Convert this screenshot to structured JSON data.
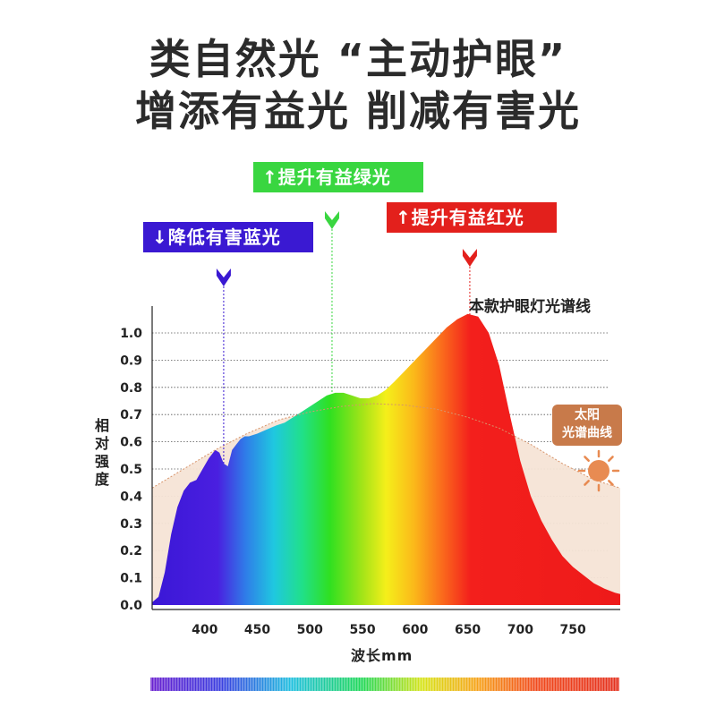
{
  "headline": {
    "line1": "类自然光 “主动护眼”",
    "line2": "增添有益光 削减有害光"
  },
  "tags": {
    "green": "↑提升有益绿光",
    "red": "↑提升有益红光",
    "blue": "↓降低有害蓝光"
  },
  "colors": {
    "green_tag": "#39d640",
    "red_tag": "#e3201c",
    "blue_tag": "#3a19d2",
    "sun_fill": "#f6e4d6",
    "sun_line": "#d7946b",
    "headline": "#2b2b2b"
  },
  "curve_label": "本款护眼灯光谱线",
  "sun_label": {
    "line1": "太阳",
    "line2": "光谱曲线"
  },
  "icons": {
    "sun": "sun-icon",
    "arrow_down": "arrow-down-icon"
  },
  "chart_data": {
    "type": "area",
    "ylabel": "相对强度",
    "xlabel": "波长mm",
    "xlim": [
      350,
      795
    ],
    "ylim": [
      0,
      1.0
    ],
    "xticks": [
      "400",
      "450",
      "500",
      "550",
      "600",
      "650",
      "700",
      "750"
    ],
    "yticks": [
      "0.0",
      "0.1",
      "0.2",
      "0.3",
      "0.4",
      "0.5",
      "0.6",
      "0.7",
      "0.8",
      "0.9",
      "1.0"
    ],
    "grid": true,
    "series": [
      {
        "name": "本款护眼灯光谱线",
        "x": [
          350,
          356,
          362,
          368,
          374,
          380,
          386,
          392,
          398,
          404,
          410,
          414,
          418,
          422,
          426,
          430,
          434,
          438,
          442,
          446,
          450,
          456,
          462,
          468,
          476,
          484,
          492,
          500,
          508,
          516,
          524,
          532,
          540,
          548,
          556,
          564,
          572,
          580,
          590,
          600,
          610,
          620,
          630,
          640,
          650,
          660,
          670,
          680,
          690,
          700,
          710,
          720,
          730,
          740,
          750,
          760,
          770,
          780,
          790,
          795
        ],
        "y": [
          0.01,
          0.03,
          0.12,
          0.26,
          0.36,
          0.42,
          0.45,
          0.46,
          0.5,
          0.54,
          0.57,
          0.56,
          0.52,
          0.51,
          0.57,
          0.59,
          0.61,
          0.62,
          0.62,
          0.625,
          0.63,
          0.64,
          0.65,
          0.66,
          0.67,
          0.69,
          0.71,
          0.73,
          0.75,
          0.77,
          0.78,
          0.78,
          0.77,
          0.76,
          0.76,
          0.77,
          0.79,
          0.82,
          0.86,
          0.9,
          0.94,
          0.98,
          1.02,
          1.05,
          1.07,
          1.06,
          1.0,
          0.88,
          0.7,
          0.53,
          0.4,
          0.31,
          0.24,
          0.18,
          0.14,
          0.11,
          0.08,
          0.06,
          0.045,
          0.04
        ]
      },
      {
        "name": "太阳光谱曲线",
        "x": [
          350,
          380,
          410,
          440,
          470,
          500,
          530,
          560,
          590,
          620,
          650,
          680,
          710,
          740,
          770,
          795
        ],
        "y": [
          0.43,
          0.5,
          0.57,
          0.63,
          0.68,
          0.71,
          0.73,
          0.74,
          0.735,
          0.72,
          0.69,
          0.65,
          0.59,
          0.52,
          0.46,
          0.43
        ]
      }
    ],
    "markers": [
      {
        "x": 418
      },
      {
        "x": 521
      },
      {
        "x": 652
      }
    ]
  }
}
